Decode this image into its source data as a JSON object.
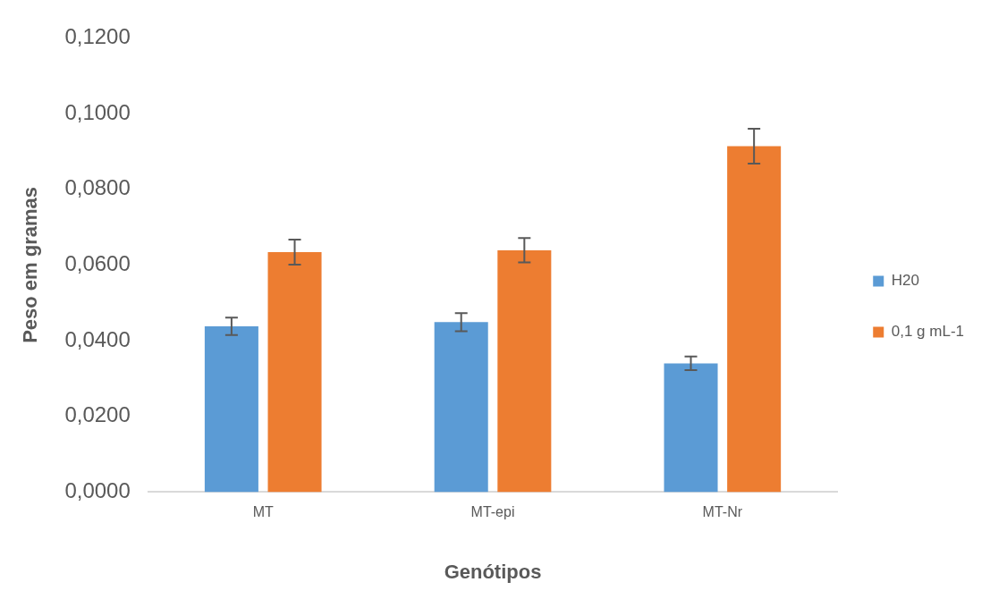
{
  "chart_data": {
    "type": "bar",
    "xlabel": "Genótipos",
    "ylabel": "Peso em gramas",
    "categories": [
      "MT",
      "MT-epi",
      "MT-Nr"
    ],
    "series": [
      {
        "name": "H20",
        "color": "#5b9bd5",
        "values": [
          0.0438,
          0.0449,
          0.034
        ],
        "errors": [
          0.0023,
          0.0024,
          0.0018
        ]
      },
      {
        "name": "0,1 g mL-1",
        "color": "#ed7d31",
        "values": [
          0.0634,
          0.0639,
          0.0914
        ],
        "errors": [
          0.0033,
          0.0032,
          0.0046
        ]
      }
    ],
    "ylim": [
      0,
      0.12
    ],
    "yticks": [
      {
        "value": 0,
        "label": "0,0000"
      },
      {
        "value": 0.02,
        "label": "0,0200"
      },
      {
        "value": 0.04,
        "label": "0,0400"
      },
      {
        "value": 0.06,
        "label": "0,0600"
      },
      {
        "value": 0.08,
        "label": "0,0800"
      },
      {
        "value": 0.1,
        "label": "0,1000"
      },
      {
        "value": 0.12,
        "label": "0,1200"
      }
    ],
    "grid": false,
    "legend": "right"
  }
}
